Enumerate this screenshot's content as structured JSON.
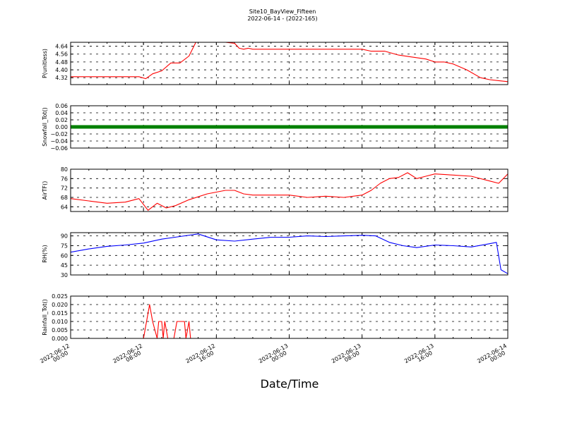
{
  "title": "Site10_BayView_Fifteen",
  "subtitle": "2022-06-14 - (2022-165)",
  "xlabel": "Date/Time",
  "chart_data": {
    "type": "line",
    "title": "Site10_BayView_Fifteen",
    "subtitle": "2022-06-14 - (2022-165)",
    "xlabel": "Date/Time",
    "grid": true,
    "xlim": [
      "2022-06-12 00:00",
      "2022-06-14 00:00"
    ],
    "x_ticks": [
      "2022-06-12 00:00",
      "2022-06-12 08:00",
      "2022-06-12 16:00",
      "2022-06-13 00:00",
      "2022-06-13 08:00",
      "2022-06-13 16:00",
      "2022-06-14 00:00"
    ],
    "x_tick_labels": [
      [
        "2022-06-12",
        "00:00"
      ],
      [
        "2022-06-12",
        "08:00"
      ],
      [
        "2022-06-12",
        "16:00"
      ],
      [
        "2022-06-13",
        "00:00"
      ],
      [
        "2022-06-13",
        "08:00"
      ],
      [
        "2022-06-13",
        "16:00"
      ],
      [
        "2022-06-14",
        "00:00"
      ]
    ],
    "panels": [
      {
        "ylabel": "P(unitless)",
        "color": "#ff0000",
        "ylim": [
          4.25,
          4.68
        ],
        "y_ticks": [
          4.32,
          4.4,
          4.48,
          4.56,
          4.64
        ],
        "y_tick_labels": [
          "4.32",
          "4.40",
          "4.48",
          "4.56",
          "4.64"
        ],
        "x": [
          "2022-06-12 00:00",
          "2022-06-12 03:00",
          "2022-06-12 06:00",
          "2022-06-12 07:30",
          "2022-06-12 08:15",
          "2022-06-12 09:00",
          "2022-06-12 10:00",
          "2022-06-12 11:00",
          "2022-06-12 12:00",
          "2022-06-12 13:00",
          "2022-06-12 13:45",
          "2022-06-12 15:00",
          "2022-06-12 17:00",
          "2022-06-12 18:00",
          "2022-06-12 18:30",
          "2022-06-12 19:00",
          "2022-06-12 19:30",
          "2022-06-12 20:00",
          "2022-06-13 00:00",
          "2022-06-13 04:00",
          "2022-06-13 08:00",
          "2022-06-13 09:00",
          "2022-06-13 10:30",
          "2022-06-13 12:00",
          "2022-06-13 13:30",
          "2022-06-13 15:00",
          "2022-06-13 16:00",
          "2022-06-13 17:00",
          "2022-06-13 18:00",
          "2022-06-13 19:30",
          "2022-06-13 21:00",
          "2022-06-13 22:00",
          "2022-06-13 23:00",
          "2022-06-14 00:00"
        ],
        "values": [
          4.33,
          4.33,
          4.33,
          4.33,
          4.31,
          4.36,
          4.39,
          4.47,
          4.47,
          4.54,
          4.68,
          4.68,
          4.68,
          4.67,
          4.62,
          4.61,
          4.62,
          4.61,
          4.61,
          4.61,
          4.61,
          4.59,
          4.59,
          4.55,
          4.53,
          4.51,
          4.48,
          4.48,
          4.46,
          4.4,
          4.32,
          4.3,
          4.29,
          4.28
        ]
      },
      {
        "ylabel": "Snowfall_Tot()",
        "color": "#008000",
        "line_width": 5,
        "ylim": [
          -0.06,
          0.06
        ],
        "y_ticks": [
          -0.06,
          -0.04,
          -0.02,
          0.0,
          0.02,
          0.04,
          0.06
        ],
        "y_tick_labels": [
          "−0.06",
          "−0.04",
          "−0.02",
          "0.00",
          "0.02",
          "0.04",
          "0.06"
        ],
        "x": [
          "2022-06-12 00:00",
          "2022-06-14 00:00"
        ],
        "values": [
          0.0,
          0.0
        ]
      },
      {
        "ylabel": "AirTF()",
        "color": "#ff0000",
        "ylim": [
          62,
          80
        ],
        "y_ticks": [
          64,
          68,
          72,
          76,
          80
        ],
        "y_tick_labels": [
          "64",
          "68",
          "72",
          "76",
          "80"
        ],
        "x": [
          "2022-06-12 00:00",
          "2022-06-12 02:00",
          "2022-06-12 04:00",
          "2022-06-12 06:00",
          "2022-06-12 07:30",
          "2022-06-12 08:30",
          "2022-06-12 09:30",
          "2022-06-12 10:30",
          "2022-06-12 11:30",
          "2022-06-12 13:00",
          "2022-06-12 15:00",
          "2022-06-12 17:00",
          "2022-06-12 18:00",
          "2022-06-12 19:00",
          "2022-06-12 20:00",
          "2022-06-12 22:00",
          "2022-06-13 00:00",
          "2022-06-13 02:00",
          "2022-06-13 04:00",
          "2022-06-13 06:00",
          "2022-06-13 08:00",
          "2022-06-13 09:00",
          "2022-06-13 10:00",
          "2022-06-13 11:00",
          "2022-06-13 12:00",
          "2022-06-13 13:00",
          "2022-06-13 14:00",
          "2022-06-13 15:00",
          "2022-06-13 16:00",
          "2022-06-13 18:00",
          "2022-06-13 20:00",
          "2022-06-13 22:00",
          "2022-06-13 23:00",
          "2022-06-14 00:00"
        ],
        "values": [
          67.5,
          66.5,
          65.5,
          66.0,
          67.5,
          62.5,
          65.5,
          63.5,
          64.5,
          67.0,
          69.5,
          71.0,
          71.0,
          69.5,
          69.0,
          69.0,
          69.0,
          68.0,
          68.5,
          68.0,
          69.0,
          71.0,
          74.0,
          76.0,
          76.5,
          78.5,
          76.0,
          77.0,
          78.0,
          77.5,
          77.0,
          75.0,
          74.0,
          78.0
        ]
      },
      {
        "ylabel": "RH(%)",
        "color": "#0000ff",
        "ylim": [
          30,
          95
        ],
        "y_ticks": [
          30,
          45,
          60,
          75,
          90
        ],
        "y_tick_labels": [
          "30",
          "45",
          "60",
          "75",
          "90"
        ],
        "x": [
          "2022-06-12 00:00",
          "2022-06-12 02:00",
          "2022-06-12 04:00",
          "2022-06-12 06:00",
          "2022-06-12 08:00",
          "2022-06-12 10:00",
          "2022-06-12 12:00",
          "2022-06-12 14:00",
          "2022-06-12 16:00",
          "2022-06-12 18:00",
          "2022-06-12 20:00",
          "2022-06-12 22:00",
          "2022-06-13 00:00",
          "2022-06-13 02:00",
          "2022-06-13 04:00",
          "2022-06-13 06:00",
          "2022-06-13 08:00",
          "2022-06-13 09:30",
          "2022-06-13 11:00",
          "2022-06-13 12:30",
          "2022-06-13 14:00",
          "2022-06-13 16:00",
          "2022-06-13 18:00",
          "2022-06-13 20:00",
          "2022-06-13 22:00",
          "2022-06-13 22:45",
          "2022-06-13 23:15",
          "2022-06-14 00:00"
        ],
        "values": [
          65,
          70,
          74,
          76,
          79,
          85,
          89,
          93,
          84,
          82,
          85,
          88,
          88,
          90,
          89,
          90,
          91,
          90,
          80,
          75,
          72,
          76,
          75,
          73,
          78,
          80,
          38,
          32
        ]
      },
      {
        "ylabel": "Rainfall_Tot()",
        "color": "#ff0000",
        "ylim": [
          0,
          0.025
        ],
        "y_ticks": [
          0.0,
          0.005,
          0.01,
          0.015,
          0.02,
          0.025
        ],
        "y_tick_labels": [
          "0.000",
          "0.005",
          "0.010",
          "0.015",
          "0.020",
          "0.025"
        ],
        "x": [
          "2022-06-12 00:00",
          "2022-06-12 08:00",
          "2022-06-12 08:40",
          "2022-06-12 09:00",
          "2022-06-12 09:30",
          "2022-06-12 09:40",
          "2022-06-12 10:00",
          "2022-06-12 10:10",
          "2022-06-12 10:20",
          "2022-06-12 10:40",
          "2022-06-12 11:20",
          "2022-06-12 11:40",
          "2022-06-12 12:20",
          "2022-06-12 12:30",
          "2022-06-12 12:40",
          "2022-06-12 13:00",
          "2022-06-12 13:10",
          "2022-06-12 13:20",
          "2022-06-12 13:30",
          "2022-06-14 00:00"
        ],
        "values": [
          0,
          0,
          0.02,
          0.01,
          0,
          0.01,
          0.01,
          0,
          0.01,
          0,
          0,
          0.01,
          0.01,
          0.01,
          0,
          0.01,
          0,
          0,
          0,
          0
        ]
      }
    ]
  }
}
